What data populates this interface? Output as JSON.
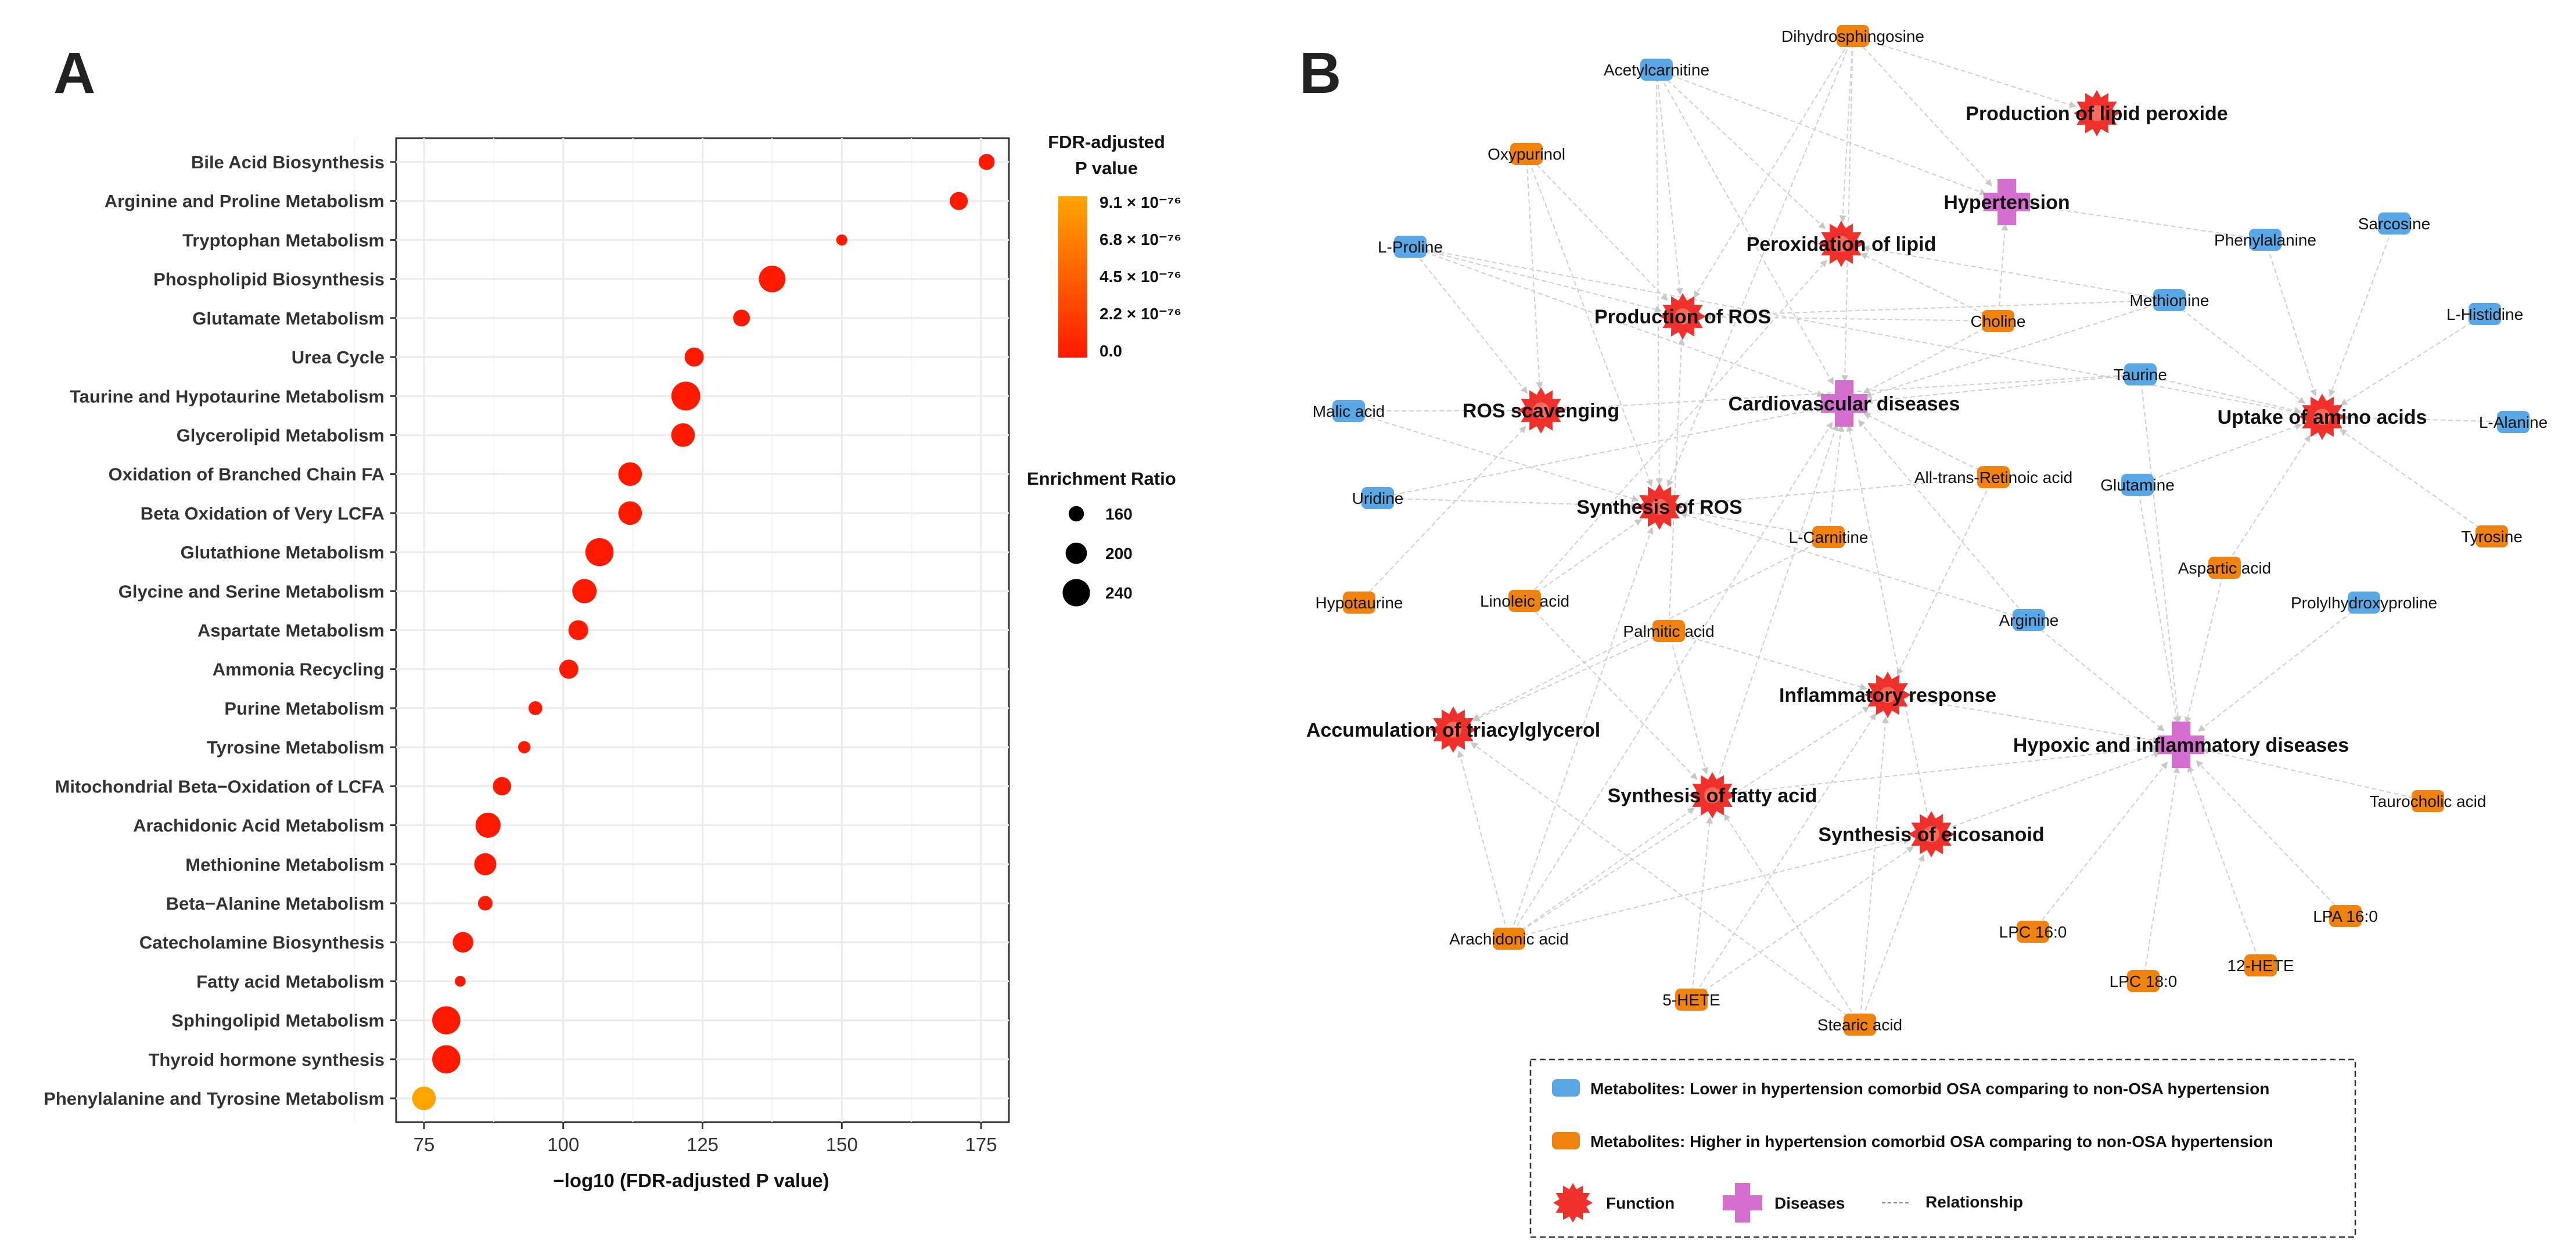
{
  "panel_a_label": "A",
  "panel_b_label": "B",
  "chart_data": [
    {
      "type": "scatter",
      "title": "",
      "xlabel": "−log10 (FDR-adjusted P value)",
      "ylabel": "",
      "xlim": [
        70,
        180
      ],
      "xticks": [
        75,
        100,
        125,
        150,
        175
      ],
      "pathways": [
        {
          "name": "Bile Acid Biosynthesis",
          "x": 176,
          "ratio": 165,
          "p_rank": 0.0
        },
        {
          "name": "Arginine and Proline Metabolism",
          "x": 171,
          "ratio": 178,
          "p_rank": 0.0
        },
        {
          "name": "Tryptophan Metabolism",
          "x": 150,
          "ratio": 132,
          "p_rank": 0.0
        },
        {
          "name": "Phospholipid Biosynthesis",
          "x": 137.5,
          "ratio": 235,
          "p_rank": 0.0
        },
        {
          "name": "Glutamate Metabolism",
          "x": 132,
          "ratio": 170,
          "p_rank": 0.0
        },
        {
          "name": "Urea Cycle",
          "x": 123.5,
          "ratio": 185,
          "p_rank": 0.0
        },
        {
          "name": "Taurine and Hypotaurine Metabolism",
          "x": 122,
          "ratio": 250,
          "p_rank": 0.0
        },
        {
          "name": "Glycerolipid Metabolism",
          "x": 121.5,
          "ratio": 215,
          "p_rank": 0.0
        },
        {
          "name": "Oxidation of Branched Chain FA",
          "x": 112,
          "ratio": 215,
          "p_rank": 0.0
        },
        {
          "name": "Beta Oxidation of Very LCFA",
          "x": 112,
          "ratio": 215,
          "p_rank": 0.0
        },
        {
          "name": "Glutathione Metabolism",
          "x": 106.5,
          "ratio": 245,
          "p_rank": 0.0
        },
        {
          "name": "Glycine and Serine Metabolism",
          "x": 103.8,
          "ratio": 220,
          "p_rank": 0.0
        },
        {
          "name": "Aspartate Metabolism",
          "x": 102.7,
          "ratio": 190,
          "p_rank": 0.0
        },
        {
          "name": "Ammonia Recycling",
          "x": 101,
          "ratio": 185,
          "p_rank": 0.0
        },
        {
          "name": "Purine Metabolism",
          "x": 95,
          "ratio": 150,
          "p_rank": 0.0
        },
        {
          "name": "Tyrosine Metabolism",
          "x": 93,
          "ratio": 140,
          "p_rank": 0.0
        },
        {
          "name": "Mitochondrial Beta−Oxidation of LCFA",
          "x": 89,
          "ratio": 180,
          "p_rank": 0.0
        },
        {
          "name": "Arachidonic Acid Metabolism",
          "x": 86.5,
          "ratio": 225,
          "p_rank": 0.0
        },
        {
          "name": "Methionine Metabolism",
          "x": 86,
          "ratio": 205,
          "p_rank": 0.0
        },
        {
          "name": "Beta−Alanine Metabolism",
          "x": 86,
          "ratio": 155,
          "p_rank": 0.0
        },
        {
          "name": "Catecholamine Biosynthesis",
          "x": 82,
          "ratio": 195,
          "p_rank": 0.0
        },
        {
          "name": "Fatty acid Metabolism",
          "x": 81.5,
          "ratio": 130,
          "p_rank": 0.0
        },
        {
          "name": "Sphingolipid Metabolism",
          "x": 79,
          "ratio": 245,
          "p_rank": 0.0
        },
        {
          "name": "Thyroid hormone synthesis",
          "x": 79,
          "ratio": 245,
          "p_rank": 0.0
        },
        {
          "name": "Phenylalanine and Tyrosine Metabolism",
          "x": 75,
          "ratio": 215,
          "p_rank": 1.0
        }
      ],
      "colorbar": {
        "title_line1": "FDR-adjusted",
        "title_line2": "P value",
        "labels": [
          "9.1 × 10⁻⁷⁶",
          "6.8 × 10⁻⁷⁶",
          "4.5 × 10⁻⁷⁶",
          "2.2 × 10⁻⁷⁶",
          "0.0"
        ],
        "low_color": "#ff1a00",
        "high_color": "#ffa500"
      },
      "size_legend": {
        "title": "Enrichment Ratio",
        "values": [
          160,
          200,
          240
        ],
        "labels": [
          "160",
          "200",
          "240"
        ]
      },
      "point_color": "#ff1a00",
      "highlight_color": "#ffa500"
    }
  ],
  "network": {
    "metabolite_colors": {
      "lower": "#5aa7e6",
      "higher": "#f0820f"
    },
    "function_color": "#f0302a",
    "disease_color": "#d46fd0",
    "metabolites": [
      {
        "id": "dihydrosphingosine",
        "label": "Dihydrosphingosine",
        "group": "higher"
      },
      {
        "id": "acetylcarnitine",
        "label": "Acetylcarnitine",
        "group": "lower"
      },
      {
        "id": "oxypurinol",
        "label": "Oxypurinol",
        "group": "higher"
      },
      {
        "id": "lproline",
        "label": "L-Proline",
        "group": "lower"
      },
      {
        "id": "malic",
        "label": "Malic acid",
        "group": "lower"
      },
      {
        "id": "uridine",
        "label": "Uridine",
        "group": "lower"
      },
      {
        "id": "hypotaurine",
        "label": "Hypotaurine",
        "group": "higher"
      },
      {
        "id": "linoleic",
        "label": "Linoleic acid",
        "group": "higher"
      },
      {
        "id": "palmitic",
        "label": "Palmitic acid",
        "group": "higher"
      },
      {
        "id": "lcarnitine",
        "label": "L-Carnitine",
        "group": "higher"
      },
      {
        "id": "choline",
        "label": "Choline",
        "group": "higher"
      },
      {
        "id": "methionine",
        "label": "Methionine",
        "group": "lower"
      },
      {
        "id": "taurine",
        "label": "Taurine",
        "group": "lower"
      },
      {
        "id": "retinoic",
        "label": "All-trans-Retinoic acid",
        "group": "higher"
      },
      {
        "id": "glutamine",
        "label": "Glutamine",
        "group": "lower"
      },
      {
        "id": "phenylalanine",
        "label": "Phenylalanine",
        "group": "lower"
      },
      {
        "id": "sarcosine",
        "label": "Sarcosine",
        "group": "lower"
      },
      {
        "id": "lhistidine",
        "label": "L-Histidine",
        "group": "lower"
      },
      {
        "id": "lalanine",
        "label": "L-Alanine",
        "group": "lower"
      },
      {
        "id": "tyrosine",
        "label": "Tyrosine",
        "group": "higher"
      },
      {
        "id": "aspartic",
        "label": "Aspartic acid",
        "group": "higher"
      },
      {
        "id": "prolyl",
        "label": "Prolylhydroxyproline",
        "group": "lower"
      },
      {
        "id": "arginine",
        "label": "Arginine",
        "group": "lower"
      },
      {
        "id": "taurocholic",
        "label": "Taurocholic acid",
        "group": "higher"
      },
      {
        "id": "lpa160",
        "label": "LPA 16:0",
        "group": "higher"
      },
      {
        "id": "lpc160",
        "label": "LPC 16:0",
        "group": "higher"
      },
      {
        "id": "lpc180",
        "label": "LPC 18:0",
        "group": "higher"
      },
      {
        "id": "hete12",
        "label": "12-HETE",
        "group": "higher"
      },
      {
        "id": "arachidonic",
        "label": "Arachidonic acid",
        "group": "higher"
      },
      {
        "id": "hete5",
        "label": "5-HETE",
        "group": "higher"
      },
      {
        "id": "stearic",
        "label": "Stearic acid",
        "group": "higher"
      }
    ],
    "functions": [
      {
        "id": "lipidperox",
        "label": "Production of lipid peroxide"
      },
      {
        "id": "peroxlipid",
        "label": "Peroxidation of lipid"
      },
      {
        "id": "prodros",
        "label": "Production of ROS"
      },
      {
        "id": "rosscav",
        "label": "ROS scavenging"
      },
      {
        "id": "synros",
        "label": "Synthesis of ROS"
      },
      {
        "id": "uptakeaa",
        "label": "Uptake of amino acids"
      },
      {
        "id": "inflam",
        "label": "Inflammatory response"
      },
      {
        "id": "accum",
        "label": "Accumulation of triacylglycerol"
      },
      {
        "id": "synfa",
        "label": "Synthesis of fatty acid"
      },
      {
        "id": "syneico",
        "label": "Synthesis of eicosanoid"
      }
    ],
    "diseases": [
      {
        "id": "hypert",
        "label": "Hypertension"
      },
      {
        "id": "cvd",
        "label": "Cardiovascular diseases"
      },
      {
        "id": "hypox",
        "label": "Hypoxic and inflammatory diseases"
      }
    ],
    "edges": [
      [
        "dihydrosphingosine",
        "peroxlipid"
      ],
      [
        "dihydrosphingosine",
        "lipidperox"
      ],
      [
        "dihydrosphingosine",
        "prodros"
      ],
      [
        "dihydrosphingosine",
        "cvd"
      ],
      [
        "dihydrosphingosine",
        "hypert"
      ],
      [
        "dihydrosphingosine",
        "synros"
      ],
      [
        "acetylcarnitine",
        "prodros"
      ],
      [
        "acetylcarnitine",
        "peroxlipid"
      ],
      [
        "acetylcarnitine",
        "hypert"
      ],
      [
        "acetylcarnitine",
        "cvd"
      ],
      [
        "acetylcarnitine",
        "synros"
      ],
      [
        "oxypurinol",
        "prodros"
      ],
      [
        "oxypurinol",
        "rosscav"
      ],
      [
        "oxypurinol",
        "synros"
      ],
      [
        "lproline",
        "prodros"
      ],
      [
        "lproline",
        "rosscav"
      ],
      [
        "lproline",
        "uptakeaa"
      ],
      [
        "lproline",
        "cvd"
      ],
      [
        "malic",
        "rosscav"
      ],
      [
        "malic",
        "synros"
      ],
      [
        "uridine",
        "synros"
      ],
      [
        "uridine",
        "cvd"
      ],
      [
        "hypotaurine",
        "rosscav"
      ],
      [
        "linoleic",
        "synros"
      ],
      [
        "linoleic",
        "synfa"
      ],
      [
        "linoleic",
        "peroxlipid"
      ],
      [
        "palmitic",
        "synfa"
      ],
      [
        "palmitic",
        "accum"
      ],
      [
        "palmitic",
        "inflam"
      ],
      [
        "palmitic",
        "prodros"
      ],
      [
        "lcarnitine",
        "cvd"
      ],
      [
        "lcarnitine",
        "synros"
      ],
      [
        "lcarnitine",
        "accum"
      ],
      [
        "choline",
        "cvd"
      ],
      [
        "choline",
        "prodros"
      ],
      [
        "choline",
        "hypert"
      ],
      [
        "choline",
        "peroxlipid"
      ],
      [
        "methionine",
        "uptakeaa"
      ],
      [
        "methionine",
        "cvd"
      ],
      [
        "methionine",
        "prodros"
      ],
      [
        "methionine",
        "peroxlipid"
      ],
      [
        "taurine",
        "cvd"
      ],
      [
        "taurine",
        "rosscav"
      ],
      [
        "taurine",
        "uptakeaa"
      ],
      [
        "taurine",
        "hypox"
      ],
      [
        "retinoic",
        "cvd"
      ],
      [
        "retinoic",
        "inflam"
      ],
      [
        "retinoic",
        "synros"
      ],
      [
        "glutamine",
        "uptakeaa"
      ],
      [
        "glutamine",
        "hypox"
      ],
      [
        "phenylalanine",
        "uptakeaa"
      ],
      [
        "phenylalanine",
        "hypert"
      ],
      [
        "sarcosine",
        "uptakeaa"
      ],
      [
        "lhistidine",
        "uptakeaa"
      ],
      [
        "lalanine",
        "uptakeaa"
      ],
      [
        "tyrosine",
        "uptakeaa"
      ],
      [
        "aspartic",
        "uptakeaa"
      ],
      [
        "aspartic",
        "hypox"
      ],
      [
        "prolyl",
        "hypox"
      ],
      [
        "arginine",
        "hypox"
      ],
      [
        "arginine",
        "cvd"
      ],
      [
        "arginine",
        "synros"
      ],
      [
        "taurocholic",
        "hypox"
      ],
      [
        "lpa160",
        "hypox"
      ],
      [
        "lpc160",
        "hypox"
      ],
      [
        "lpc180",
        "hypox"
      ],
      [
        "hete12",
        "hypox"
      ],
      [
        "arachidonic",
        "synfa"
      ],
      [
        "arachidonic",
        "syneico"
      ],
      [
        "arachidonic",
        "inflam"
      ],
      [
        "arachidonic",
        "accum"
      ],
      [
        "arachidonic",
        "synros"
      ],
      [
        "arachidonic",
        "cvd"
      ],
      [
        "hete5",
        "syneico"
      ],
      [
        "hete5",
        "inflam"
      ],
      [
        "hete5",
        "synfa"
      ],
      [
        "stearic",
        "synfa"
      ],
      [
        "stearic",
        "syneico"
      ],
      [
        "stearic",
        "inflam"
      ],
      [
        "stearic",
        "accum"
      ],
      [
        "syneico",
        "hypox"
      ],
      [
        "synfa",
        "hypox"
      ],
      [
        "inflam",
        "hypox"
      ],
      [
        "syneico",
        "cvd"
      ],
      [
        "synfa",
        "cvd"
      ]
    ],
    "legend": {
      "lower": "Metabolites: Lower in hypertension comorbid OSA comparing to non-OSA hypertension",
      "higher": "Metabolites: Higher in hypertension comorbid OSA comparing to non-OSA hypertension",
      "function": "Function",
      "diseases": "Diseases",
      "relationship": "Relationship"
    }
  }
}
